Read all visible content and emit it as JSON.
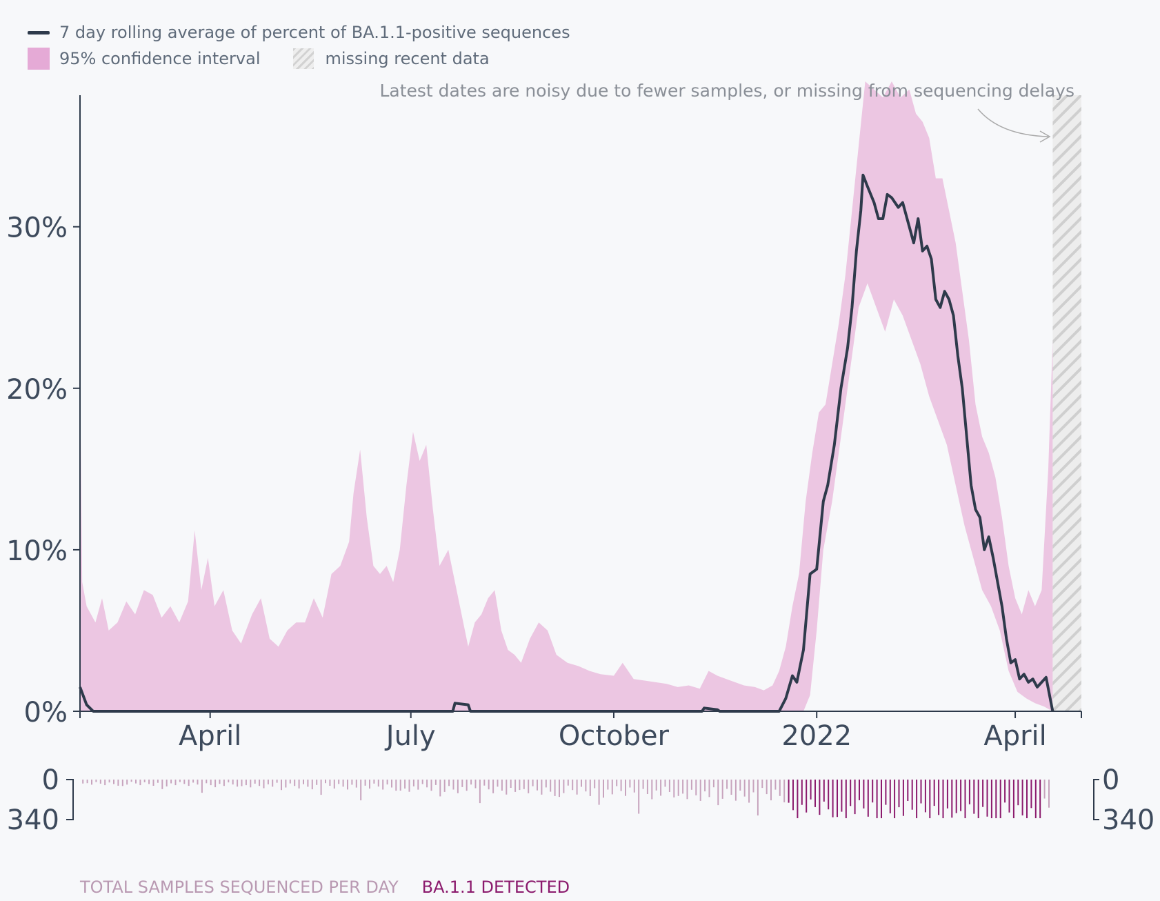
{
  "legend": {
    "line_label": "7 day rolling average of percent of BA.1.1-positive sequences",
    "ci_label": "95% confidence interval",
    "missing_label": "missing recent data"
  },
  "annotation": "Latest dates are noisy due to fewer samples, or missing from sequencing delays",
  "bottom_labels": {
    "total": "TOTAL SAMPLES SEQUENCED PER DAY",
    "detected": "BA.1.1 DETECTED"
  },
  "colors": {
    "line": "#2e3a4b",
    "ci": "#ecc6e2",
    "ci_legend": "#e5aad6",
    "total_bars": "#c7a3bd",
    "detected_bars": "#8b1a6d",
    "axis": "#2e3a4b",
    "annotation": "#8a8f97"
  },
  "chart_data": {
    "type": "line",
    "x_axis": {
      "start": "2021-02-01",
      "end": "2022-05-01",
      "ticks": [
        {
          "date": "2021-04-01",
          "label": "April"
        },
        {
          "date": "2021-07-01",
          "label": "July"
        },
        {
          "date": "2021-10-01",
          "label": "October"
        },
        {
          "date": "2022-01-01",
          "label": "2022"
        },
        {
          "date": "2022-04-01",
          "label": "April"
        }
      ]
    },
    "y_axis": {
      "min": 0,
      "max": 39,
      "ticks": [
        {
          "value": 0,
          "label": "0%"
        },
        {
          "value": 10,
          "label": "10%"
        },
        {
          "value": 20,
          "label": "20%"
        },
        {
          "value": 30,
          "label": "30%"
        }
      ]
    },
    "missing_data_start": "2022-04-18",
    "series_line": [
      [
        "2021-02-01",
        1.5
      ],
      [
        "2021-02-04",
        0.4
      ],
      [
        "2021-02-07",
        0
      ],
      [
        "2021-07-20",
        0
      ],
      [
        "2021-07-21",
        0.5
      ],
      [
        "2021-07-27",
        0.4
      ],
      [
        "2021-07-28",
        0
      ],
      [
        "2021-11-10",
        0
      ],
      [
        "2021-11-11",
        0.2
      ],
      [
        "2021-11-17",
        0.1
      ],
      [
        "2021-11-18",
        0
      ],
      [
        "2021-12-15",
        0
      ],
      [
        "2021-12-18",
        0.8
      ],
      [
        "2021-12-21",
        2.2
      ],
      [
        "2021-12-23",
        1.8
      ],
      [
        "2021-12-26",
        3.8
      ],
      [
        "2021-12-29",
        8.5
      ],
      [
        "2022-01-01",
        8.8
      ],
      [
        "2022-01-04",
        13.0
      ],
      [
        "2022-01-06",
        14.0
      ],
      [
        "2022-01-09",
        16.5
      ],
      [
        "2022-01-12",
        20.0
      ],
      [
        "2022-01-15",
        22.5
      ],
      [
        "2022-01-17",
        25.0
      ],
      [
        "2022-01-19",
        28.5
      ],
      [
        "2022-01-21",
        31.0
      ],
      [
        "2022-01-22",
        33.2
      ],
      [
        "2022-01-24",
        32.5
      ],
      [
        "2022-01-27",
        31.5
      ],
      [
        "2022-01-29",
        30.5
      ],
      [
        "2022-01-31",
        30.5
      ],
      [
        "2022-02-02",
        32.0
      ],
      [
        "2022-02-04",
        31.8
      ],
      [
        "2022-02-07",
        31.2
      ],
      [
        "2022-02-09",
        31.5
      ],
      [
        "2022-02-12",
        30.0
      ],
      [
        "2022-02-14",
        29.0
      ],
      [
        "2022-02-16",
        30.5
      ],
      [
        "2022-02-18",
        28.5
      ],
      [
        "2022-02-20",
        28.8
      ],
      [
        "2022-02-22",
        28.0
      ],
      [
        "2022-02-24",
        25.5
      ],
      [
        "2022-02-26",
        25.0
      ],
      [
        "2022-02-28",
        26.0
      ],
      [
        "2022-03-02",
        25.5
      ],
      [
        "2022-03-04",
        24.5
      ],
      [
        "2022-03-06",
        22.0
      ],
      [
        "2022-03-08",
        20.0
      ],
      [
        "2022-03-10",
        17.0
      ],
      [
        "2022-03-12",
        14.0
      ],
      [
        "2022-03-14",
        12.5
      ],
      [
        "2022-03-16",
        12.0
      ],
      [
        "2022-03-18",
        10.0
      ],
      [
        "2022-03-20",
        10.8
      ],
      [
        "2022-03-22",
        9.5
      ],
      [
        "2022-03-24",
        8.0
      ],
      [
        "2022-03-26",
        6.5
      ],
      [
        "2022-03-28",
        4.5
      ],
      [
        "2022-03-30",
        3.0
      ],
      [
        "2022-04-01",
        3.2
      ],
      [
        "2022-04-03",
        2.0
      ],
      [
        "2022-04-05",
        2.3
      ],
      [
        "2022-04-07",
        1.8
      ],
      [
        "2022-04-09",
        2.0
      ],
      [
        "2022-04-11",
        1.5
      ],
      [
        "2022-04-13",
        1.8
      ],
      [
        "2022-04-15",
        2.1
      ],
      [
        "2022-04-18",
        0
      ]
    ],
    "ci_upper": [
      [
        "2021-02-01",
        21
      ],
      [
        "2021-02-02",
        8
      ],
      [
        "2021-02-04",
        6.5
      ],
      [
        "2021-02-08",
        5.5
      ],
      [
        "2021-02-11",
        7
      ],
      [
        "2021-02-14",
        5
      ],
      [
        "2021-02-18",
        5.5
      ],
      [
        "2021-02-22",
        6.8
      ],
      [
        "2021-02-26",
        6
      ],
      [
        "2021-03-02",
        7.5
      ],
      [
        "2021-03-06",
        7.2
      ],
      [
        "2021-03-10",
        5.8
      ],
      [
        "2021-03-14",
        6.5
      ],
      [
        "2021-03-18",
        5.5
      ],
      [
        "2021-03-22",
        6.8
      ],
      [
        "2021-03-25",
        11.2
      ],
      [
        "2021-03-28",
        7.5
      ],
      [
        "2021-03-31",
        9.5
      ],
      [
        "2021-04-03",
        6.5
      ],
      [
        "2021-04-07",
        7.5
      ],
      [
        "2021-04-11",
        5
      ],
      [
        "2021-04-15",
        4.2
      ],
      [
        "2021-04-20",
        6
      ],
      [
        "2021-04-24",
        7
      ],
      [
        "2021-04-28",
        4.5
      ],
      [
        "2021-05-02",
        4.0
      ],
      [
        "2021-05-06",
        5.0
      ],
      [
        "2021-05-10",
        5.5
      ],
      [
        "2021-05-14",
        5.5
      ],
      [
        "2021-05-18",
        7.0
      ],
      [
        "2021-05-22",
        5.8
      ],
      [
        "2021-05-26",
        8.5
      ],
      [
        "2021-05-30",
        9.0
      ],
      [
        "2021-06-03",
        10.5
      ],
      [
        "2021-06-05",
        13.5
      ],
      [
        "2021-06-08",
        16.2
      ],
      [
        "2021-06-11",
        12.0
      ],
      [
        "2021-06-14",
        9.0
      ],
      [
        "2021-06-17",
        8.5
      ],
      [
        "2021-06-20",
        9.0
      ],
      [
        "2021-06-23",
        8.0
      ],
      [
        "2021-06-26",
        10.0
      ],
      [
        "2021-06-29",
        14.0
      ],
      [
        "2021-07-02",
        17.3
      ],
      [
        "2021-07-05",
        15.5
      ],
      [
        "2021-07-08",
        16.5
      ],
      [
        "2021-07-11",
        12.5
      ],
      [
        "2021-07-14",
        9.0
      ],
      [
        "2021-07-18",
        10.0
      ],
      [
        "2021-07-21",
        8.0
      ],
      [
        "2021-07-24",
        6.0
      ],
      [
        "2021-07-27",
        4.0
      ],
      [
        "2021-07-30",
        5.5
      ],
      [
        "2021-08-02",
        6.0
      ],
      [
        "2021-08-05",
        7.0
      ],
      [
        "2021-08-08",
        7.5
      ],
      [
        "2021-08-11",
        5.0
      ],
      [
        "2021-08-14",
        3.8
      ],
      [
        "2021-08-17",
        3.5
      ],
      [
        "2021-08-20",
        3.0
      ],
      [
        "2021-08-24",
        4.5
      ],
      [
        "2021-08-28",
        5.5
      ],
      [
        "2021-09-01",
        5.0
      ],
      [
        "2021-09-05",
        3.5
      ],
      [
        "2021-09-10",
        3.0
      ],
      [
        "2021-09-15",
        2.8
      ],
      [
        "2021-09-20",
        2.5
      ],
      [
        "2021-09-25",
        2.3
      ],
      [
        "2021-10-01",
        2.2
      ],
      [
        "2021-10-05",
        3.0
      ],
      [
        "2021-10-10",
        2.0
      ],
      [
        "2021-10-15",
        1.9
      ],
      [
        "2021-10-20",
        1.8
      ],
      [
        "2021-10-25",
        1.7
      ],
      [
        "2021-10-30",
        1.5
      ],
      [
        "2021-11-04",
        1.6
      ],
      [
        "2021-11-09",
        1.4
      ],
      [
        "2021-11-13",
        2.5
      ],
      [
        "2021-11-17",
        2.2
      ],
      [
        "2021-11-21",
        2.0
      ],
      [
        "2021-11-25",
        1.8
      ],
      [
        "2021-11-29",
        1.6
      ],
      [
        "2021-12-04",
        1.5
      ],
      [
        "2021-12-08",
        1.3
      ],
      [
        "2021-12-12",
        1.6
      ],
      [
        "2021-12-15",
        2.5
      ],
      [
        "2021-12-18",
        4.0
      ],
      [
        "2021-12-21",
        6.5
      ],
      [
        "2021-12-24",
        8.5
      ],
      [
        "2021-12-27",
        13.0
      ],
      [
        "2021-12-30",
        16.0
      ],
      [
        "2022-01-02",
        18.5
      ],
      [
        "2022-01-05",
        19.0
      ],
      [
        "2022-01-08",
        21.5
      ],
      [
        "2022-01-11",
        24.0
      ],
      [
        "2022-01-14",
        27.0
      ],
      [
        "2022-01-17",
        31.0
      ],
      [
        "2022-01-20",
        35.0
      ],
      [
        "2022-01-23",
        39.0
      ],
      [
        "2022-01-27",
        38.5
      ],
      [
        "2022-01-31",
        38.0
      ],
      [
        "2022-02-04",
        39.0
      ],
      [
        "2022-02-08",
        38.0
      ],
      [
        "2022-02-12",
        38.5
      ],
      [
        "2022-02-15",
        37.0
      ],
      [
        "2022-02-18",
        36.5
      ],
      [
        "2022-02-21",
        35.5
      ],
      [
        "2022-02-24",
        33.0
      ],
      [
        "2022-02-27",
        33.0
      ],
      [
        "2022-03-02",
        31.0
      ],
      [
        "2022-03-05",
        29.0
      ],
      [
        "2022-03-08",
        26.0
      ],
      [
        "2022-03-11",
        23.0
      ],
      [
        "2022-03-14",
        19.0
      ],
      [
        "2022-03-17",
        17.0
      ],
      [
        "2022-03-20",
        16.0
      ],
      [
        "2022-03-23",
        14.5
      ],
      [
        "2022-03-26",
        12.0
      ],
      [
        "2022-03-29",
        9.0
      ],
      [
        "2022-04-01",
        7.0
      ],
      [
        "2022-04-04",
        6.0
      ],
      [
        "2022-04-07",
        7.5
      ],
      [
        "2022-04-10",
        6.5
      ],
      [
        "2022-04-13",
        7.5
      ],
      [
        "2022-04-16",
        15.0
      ],
      [
        "2022-04-18",
        23.0
      ]
    ],
    "ci_lower": [
      [
        "2021-02-01",
        0
      ],
      [
        "2021-12-26",
        0
      ],
      [
        "2021-12-29",
        1.0
      ],
      [
        "2022-01-01",
        5.0
      ],
      [
        "2022-01-04",
        10.0
      ],
      [
        "2022-01-08",
        13.0
      ],
      [
        "2022-01-12",
        17.0
      ],
      [
        "2022-01-16",
        21.0
      ],
      [
        "2022-01-20",
        25.0
      ],
      [
        "2022-01-24",
        26.5
      ],
      [
        "2022-01-28",
        25.0
      ],
      [
        "2022-02-01",
        23.5
      ],
      [
        "2022-02-05",
        25.5
      ],
      [
        "2022-02-09",
        24.5
      ],
      [
        "2022-02-13",
        23.0
      ],
      [
        "2022-02-17",
        21.5
      ],
      [
        "2022-02-21",
        19.5
      ],
      [
        "2022-02-25",
        18.0
      ],
      [
        "2022-03-01",
        16.5
      ],
      [
        "2022-03-05",
        14.0
      ],
      [
        "2022-03-09",
        11.5
      ],
      [
        "2022-03-13",
        9.5
      ],
      [
        "2022-03-17",
        7.5
      ],
      [
        "2022-03-21",
        6.5
      ],
      [
        "2022-03-25",
        5.0
      ],
      [
        "2022-03-29",
        2.5
      ],
      [
        "2022-04-02",
        1.2
      ],
      [
        "2022-04-06",
        0.8
      ],
      [
        "2022-04-10",
        0.5
      ],
      [
        "2022-04-14",
        0.3
      ],
      [
        "2022-04-18",
        0
      ]
    ],
    "daily_totals_max": 340,
    "daily_totals_ticks": [
      "0",
      "340"
    ]
  }
}
